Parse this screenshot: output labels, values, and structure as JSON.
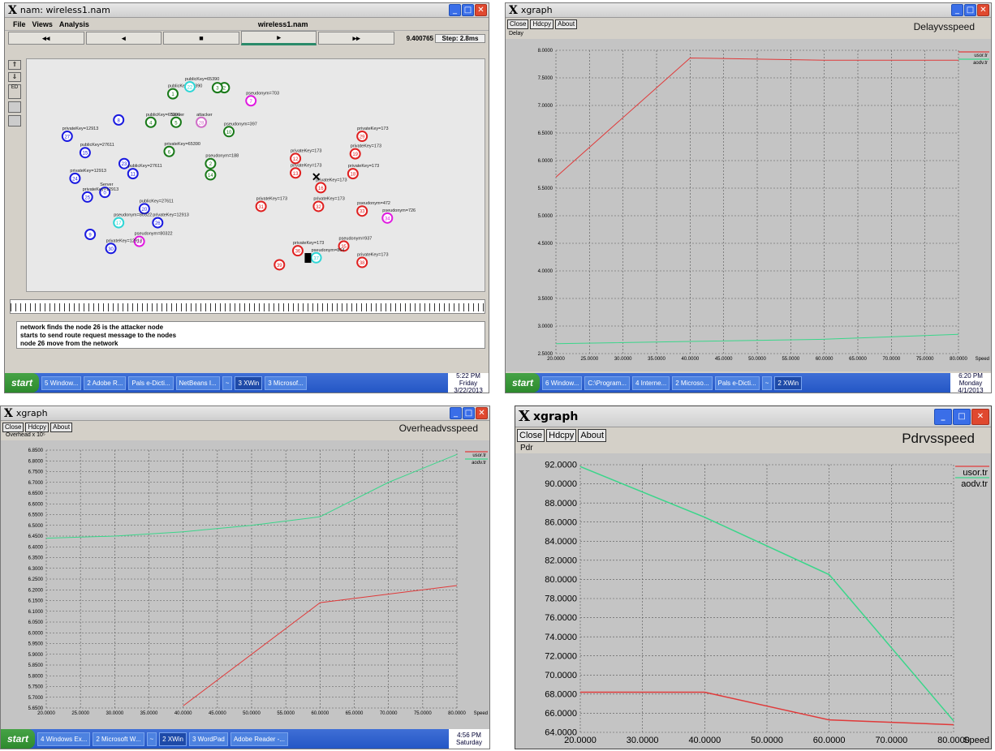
{
  "nam": {
    "title": "nam: wireless1.nam",
    "menu": [
      "File",
      "Views",
      "Analysis"
    ],
    "file_label": "wireless1.nam",
    "controls": [
      "◂◂",
      "◂",
      "■",
      "▸",
      "▸▸"
    ],
    "time": "9.400765",
    "step": "Step: 2.8ms",
    "messages": [
      "network finds the node 26 is the attacker node",
      "starts to send route request message to the nodes",
      "node 26 move from the network"
    ],
    "nodes": [
      {
        "id": "1",
        "c": "#1a7a1a",
        "label": "publicKey=65390",
        "nx": 0.318,
        "ny": 0.148
      },
      {
        "id": "2",
        "c": "#1a7a1a",
        "label": "",
        "nx": 0.43,
        "ny": 0.122
      },
      {
        "id": "22",
        "c": "#2fd6d6",
        "label": "publicKey=65390",
        "nx": 0.355,
        "ny": 0.118
      },
      {
        "id": "3",
        "c": "#1a7a1a",
        "label": "",
        "nx": 0.415,
        "ny": 0.122
      },
      {
        "id": "7",
        "c": "#e01ae0",
        "label": "pseudonym=703",
        "nx": 0.488,
        "ny": 0.178
      },
      {
        "id": "8",
        "c": "#1a1ae0",
        "label": "",
        "nx": 0.2,
        "ny": 0.26
      },
      {
        "id": "27",
        "c": "#1a1ae0",
        "label": "privateKey=12913",
        "nx": 0.088,
        "ny": 0.33
      },
      {
        "id": "4",
        "c": "#1a7a1a",
        "label": "publicKey=65390",
        "nx": 0.27,
        "ny": 0.27
      },
      {
        "id": "5",
        "c": "#1a7a1a",
        "label": "Server",
        "nx": 0.325,
        "ny": 0.27
      },
      {
        "id": "28",
        "c": "#d06ec8",
        "label": "attacker",
        "nx": 0.38,
        "ny": 0.27
      },
      {
        "id": "10",
        "c": "#1a7a1a",
        "label": "pseudonym=397",
        "nx": 0.44,
        "ny": 0.31
      },
      {
        "id": "15",
        "c": "#1a1ae0",
        "label": "publicKey=27611",
        "nx": 0.127,
        "ny": 0.4
      },
      {
        "id": "6",
        "c": "#1a7a1a",
        "label": "privateKey=65390",
        "nx": 0.31,
        "ny": 0.395
      },
      {
        "id": "23",
        "c": "#1a1ae0",
        "label": "",
        "nx": 0.212,
        "ny": 0.447
      },
      {
        "id": "11",
        "c": "#1a1ae0",
        "label": "publicKey=27611",
        "nx": 0.231,
        "ny": 0.49
      },
      {
        "id": "2b",
        "c": "#1a7a1a",
        "label": "pseudonym=188",
        "nx": 0.4,
        "ny": 0.447
      },
      {
        "id": "14",
        "c": "#1a7a1a",
        "label": "",
        "nx": 0.4,
        "ny": 0.495
      },
      {
        "id": "24",
        "c": "#1a1ae0",
        "label": "privateKey=12913",
        "nx": 0.105,
        "ny": 0.51
      },
      {
        "id": "0",
        "c": "#1a1ae0",
        "label": "Server",
        "nx": 0.17,
        "ny": 0.57
      },
      {
        "id": "25",
        "c": "#1a1ae0",
        "label": "privateKey=12913",
        "nx": 0.132,
        "ny": 0.59
      },
      {
        "id": "20",
        "c": "#1a1ae0",
        "label": "publicKey=27611",
        "nx": 0.256,
        "ny": 0.64
      },
      {
        "id": "17",
        "c": "#2fd6d6",
        "label": "pseudonym=80322",
        "nx": 0.2,
        "ny": 0.7
      },
      {
        "id": "26",
        "c": "#1a1ae0",
        "label": "privateKey=12913",
        "nx": 0.285,
        "ny": 0.7
      },
      {
        "id": "9",
        "c": "#1a1ae0",
        "label": "",
        "nx": 0.138,
        "ny": 0.75
      },
      {
        "id": "21",
        "c": "#e01ae0",
        "label": "pseudonym=80322",
        "nx": 0.245,
        "ny": 0.78
      },
      {
        "id": "30",
        "c": "#1a1ae0",
        "label": "privateKey=12913",
        "nx": 0.183,
        "ny": 0.81
      },
      {
        "id": "12",
        "c": "#e02020",
        "label": "privateKey=173",
        "nx": 0.585,
        "ny": 0.425
      },
      {
        "id": "13",
        "c": "#e02020",
        "label": "privateKey=173",
        "nx": 0.585,
        "ny": 0.487
      },
      {
        "id": "16",
        "c": "#e02020",
        "label": "privateKey=173",
        "nx": 0.64,
        "ny": 0.55
      },
      {
        "id": "18",
        "c": "#e02020",
        "label": "privateKey=173",
        "nx": 0.71,
        "ny": 0.49
      },
      {
        "id": "19",
        "c": "#e02020",
        "label": "privateKey=173",
        "nx": 0.715,
        "ny": 0.405
      },
      {
        "id": "29",
        "c": "#e02020",
        "label": "privateKey=173",
        "nx": 0.73,
        "ny": 0.33
      },
      {
        "id": "31",
        "c": "#e02020",
        "label": "privateKey=173",
        "nx": 0.51,
        "ny": 0.63
      },
      {
        "id": "32",
        "c": "#e02020",
        "label": "privateKey=173",
        "nx": 0.635,
        "ny": 0.63
      },
      {
        "id": "33",
        "c": "#e02020",
        "label": "pseudonym=472",
        "nx": 0.73,
        "ny": 0.65
      },
      {
        "id": "34",
        "c": "#e01ae0",
        "label": "pseudonym=726",
        "nx": 0.785,
        "ny": 0.68
      },
      {
        "id": "35",
        "c": "#e02020",
        "label": "pseudonym=937",
        "nx": 0.69,
        "ny": 0.8
      },
      {
        "id": "36",
        "c": "#e02020",
        "label": "privateKey=173",
        "nx": 0.59,
        "ny": 0.82
      },
      {
        "id": "37",
        "c": "#2fd6d6",
        "label": "pseudonym=864",
        "nx": 0.63,
        "ny": 0.85
      },
      {
        "id": "38",
        "c": "#e02020",
        "label": "privateKey=173",
        "nx": 0.73,
        "ny": 0.87
      },
      {
        "id": "39",
        "c": "#e02020",
        "label": "",
        "nx": 0.55,
        "ny": 0.88
      }
    ],
    "taskbar": {
      "start": "start",
      "tasks": [
        "5 Window...",
        "2 Adobe R...",
        "Pals e-Dicti...",
        "NetBeans I...",
        "~",
        "3 XWin",
        "3 Microsof..."
      ],
      "clock": "5:22 PM",
      "day": "Friday",
      "date": "3/22/2013"
    }
  },
  "delay": {
    "window_title": "xgraph",
    "buttons": [
      "Close",
      "Hdcpy",
      "About"
    ],
    "taskbar": {
      "start": "start",
      "tasks": [
        "6 Window...",
        "C:\\Program...",
        "4 Interne...",
        "2 Microso...",
        "Pals e-Dicti...",
        "~",
        "2 XWin"
      ],
      "clock": "6:20 PM",
      "day": "Monday",
      "date": "4/1/2013"
    }
  },
  "overhead": {
    "window_title": "xgraph",
    "buttons": [
      "Close",
      "Hdcpy",
      "About"
    ],
    "taskbar": {
      "start": "start",
      "tasks": [
        "4 Windows Ex...",
        "2 Microsoft W...",
        "~",
        "2 XWin",
        "3 WordPad",
        "Adobe Reader -..."
      ],
      "clock": "4:56 PM",
      "day": "Saturday",
      "date": ""
    }
  },
  "pdr": {
    "window_title": "xgraph",
    "buttons": [
      "Close",
      "Hdcpy",
      "About"
    ]
  },
  "chart_data": [
    {
      "type": "line",
      "title": "Delayvsspeed",
      "xlabel": "Speed",
      "ylabel": "Delay",
      "x": [
        20,
        40,
        80
      ],
      "xticks": [
        "20.0000",
        "25.0000",
        "30.0000",
        "35.0000",
        "40.0000",
        "45.0000",
        "50.0000",
        "55.0000",
        "60.0000",
        "65.0000",
        "70.0000",
        "75.0000",
        "80.0000"
      ],
      "yticks": [
        "2.5000",
        "3.0000",
        "3.5000",
        "4.0000",
        "4.5000",
        "5.0000",
        "5.5000",
        "6.0000",
        "6.5000",
        "7.0000",
        "7.5000",
        "8.0000"
      ],
      "xlim": [
        20,
        80
      ],
      "ylim": [
        2.5,
        8.0
      ],
      "series": [
        {
          "name": "usor.tr",
          "color": "#e03a3a",
          "x": [
            20,
            40,
            50,
            60,
            80
          ],
          "values": [
            5.7,
            7.86,
            7.84,
            7.82,
            7.82
          ]
        },
        {
          "name": "aodv.tr",
          "color": "#3ad68a",
          "x": [
            20,
            40,
            60,
            80
          ],
          "values": [
            2.68,
            2.72,
            2.76,
            2.85
          ]
        }
      ],
      "grid": true,
      "legend": "top-right"
    },
    {
      "type": "line",
      "title": "Overheadvsspeed",
      "xlabel": "Speed",
      "ylabel": "Overhead x 10⁵",
      "xticks": [
        "20.0000",
        "25.0000",
        "30.0000",
        "35.0000",
        "40.0000",
        "45.0000",
        "50.0000",
        "55.0000",
        "60.0000",
        "65.0000",
        "70.0000",
        "75.0000",
        "80.0000"
      ],
      "yticks": [
        "5.6500",
        "5.7000",
        "5.7500",
        "5.8000",
        "5.8500",
        "5.9000",
        "5.9500",
        "6.0000",
        "6.0500",
        "6.1000",
        "6.1500",
        "6.2000",
        "6.2500",
        "6.3000",
        "6.3500",
        "6.4000",
        "6.4500",
        "6.5000",
        "6.5500",
        "6.6000",
        "6.6500",
        "6.7000",
        "6.7500",
        "6.8000",
        "6.8500"
      ],
      "xlim": [
        20,
        80
      ],
      "ylim": [
        5.65,
        6.85
      ],
      "series": [
        {
          "name": "usor.tr",
          "color": "#e03a3a",
          "x": [
            40,
            60,
            80
          ],
          "values": [
            5.66,
            6.14,
            6.22
          ]
        },
        {
          "name": "aodv.tr",
          "color": "#3ad68a",
          "x": [
            20,
            30,
            40,
            50,
            60,
            70,
            80
          ],
          "values": [
            6.44,
            6.45,
            6.47,
            6.5,
            6.54,
            6.7,
            6.83
          ]
        }
      ],
      "grid": true,
      "legend": "top-right"
    },
    {
      "type": "line",
      "title": "Pdrvsspeed",
      "xlabel": "Speed",
      "ylabel": "Pdr",
      "xticks": [
        "20.0000",
        "30.0000",
        "40.0000",
        "50.0000",
        "60.0000",
        "70.0000",
        "80.0000"
      ],
      "yticks": [
        "64.0000",
        "66.0000",
        "68.0000",
        "70.0000",
        "72.0000",
        "74.0000",
        "76.0000",
        "78.0000",
        "80.0000",
        "82.0000",
        "84.0000",
        "86.0000",
        "88.0000",
        "90.0000",
        "92.0000"
      ],
      "xlim": [
        20,
        80
      ],
      "ylim": [
        64,
        92
      ],
      "series": [
        {
          "name": "usor.tr",
          "color": "#e03a3a",
          "x": [
            20,
            40,
            60,
            80
          ],
          "values": [
            68.2,
            68.2,
            65.3,
            64.8
          ]
        },
        {
          "name": "aodv.tr",
          "color": "#3ad68a",
          "x": [
            20,
            40,
            60,
            80
          ],
          "values": [
            91.8,
            86.5,
            80.5,
            65.2
          ]
        }
      ],
      "grid": true,
      "legend": "top-right"
    }
  ]
}
